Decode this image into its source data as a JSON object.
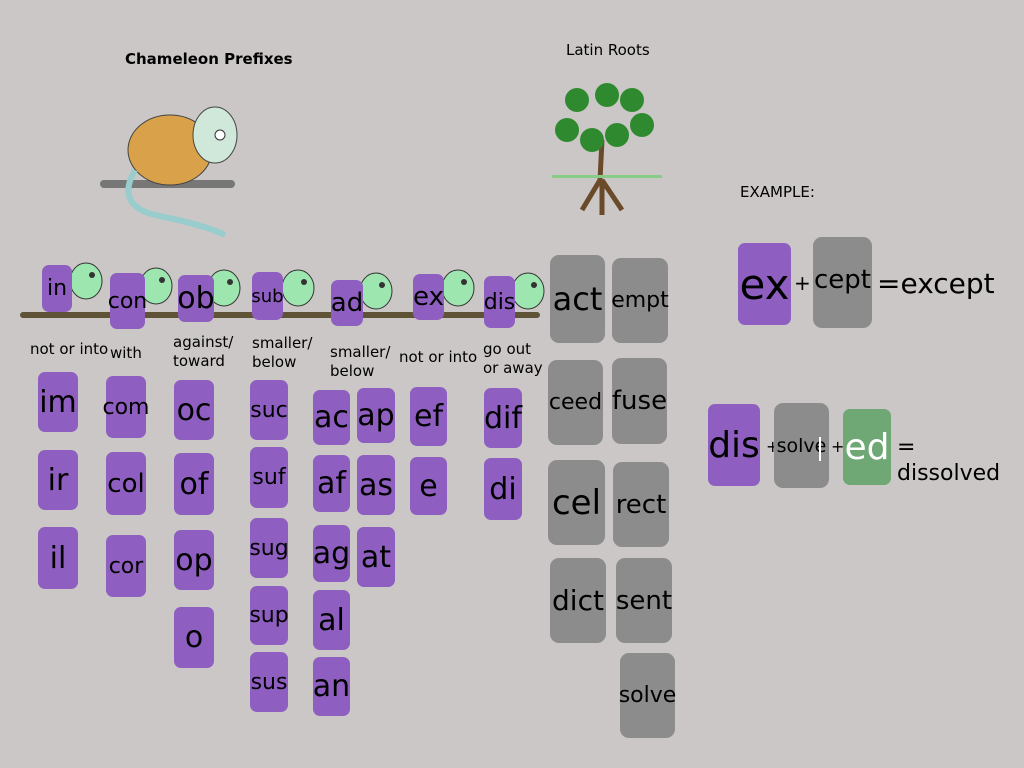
{
  "titles": {
    "prefixes": "Chameleon Prefixes",
    "roots": "Latin Roots",
    "example": "EXAMPLE:"
  },
  "colors": {
    "background": "#cbc7c6",
    "prefix_tile": "#8e5fc0",
    "root_tile": "#8c8c8c",
    "suffix_tile": "#6fa875",
    "chameleon": "#9ee6b0"
  },
  "prefix_groups": [
    {
      "prefix": "in",
      "meaning": "not or into",
      "forms": [
        "im",
        "ir",
        "il"
      ]
    },
    {
      "prefix": "con",
      "meaning": "with",
      "forms": [
        "com",
        "col",
        "cor"
      ]
    },
    {
      "prefix": "ob",
      "meaning": "against/ toward",
      "forms": [
        "oc",
        "of",
        "op",
        "o"
      ]
    },
    {
      "prefix": "sub",
      "meaning": "smaller/ below",
      "forms": [
        "suc",
        "suf",
        "sug",
        "sup",
        "sus"
      ]
    },
    {
      "prefix": "ad",
      "meaning": "smaller/ below",
      "forms": [
        "ac",
        "af",
        "ag",
        "al",
        "an",
        "ap",
        "as",
        "at"
      ]
    },
    {
      "prefix": "ex",
      "meaning": "not or into",
      "forms": [
        "ef",
        "e"
      ]
    },
    {
      "prefix": "dis",
      "meaning": "go out or away",
      "forms": [
        "dif",
        "di"
      ]
    }
  ],
  "roots": [
    "act",
    "empt",
    "ceed",
    "fuse",
    "cel",
    "rect",
    "dict",
    "sent",
    "solve"
  ],
  "example1": {
    "prefix": "ex",
    "plus": "+",
    "root": "cept",
    "result": "=except"
  },
  "example2": {
    "prefix": "dis",
    "plus1": "+",
    "root": "solve",
    "plus2": "+",
    "suffix": "ed",
    "result": "= dissolved"
  }
}
